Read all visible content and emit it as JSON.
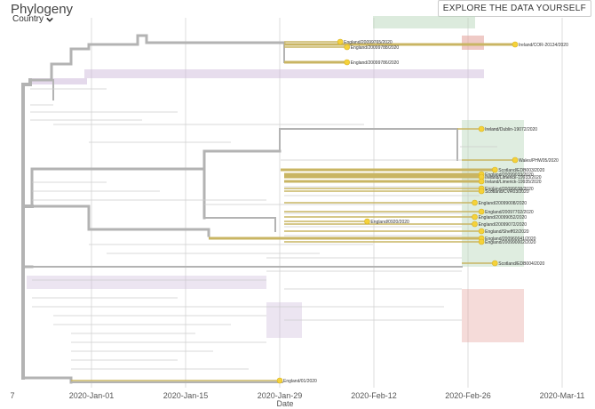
{
  "panel": {
    "title": "Phylogeny",
    "color_by_label": "Country",
    "explore_button": "EXPLORE THE DATA YOURSELF"
  },
  "colors": {
    "branch_gray": "#b3b3b3",
    "grid": "#dddddd",
    "highlight_branch": "#c9b563",
    "highlight_node": "#f5d23a",
    "purple_clade": "#c9b4d8",
    "green_clade": "#b9d8bb",
    "red_clade": "#e5a6a0"
  },
  "chart_data": {
    "type": "phylogeny-timetree",
    "x_axis": {
      "label": "Date",
      "ticks": [
        "2020-Jan-01",
        "2020-Jan-15",
        "2020-Jan-29",
        "2020-Feb-12",
        "2020-Feb-26",
        "2020-Mar-11"
      ],
      "left_edge_label": "7"
    },
    "highlighted_tips": [
      {
        "name": "England/20099765/2020",
        "date": "2020-Feb-07"
      },
      {
        "name": "England/20099788/2020",
        "date": "2020-Feb-08"
      },
      {
        "name": "Ireland/COR-20134/2020",
        "date": "2020-Mar-04"
      },
      {
        "name": "England/20099786/2020",
        "date": "2020-Feb-08"
      },
      {
        "name": "Ireland/Dublin-19072/2020",
        "date": "2020-Feb-28"
      },
      {
        "name": "Wales/PHW05/2020",
        "date": "2020-Mar-04"
      },
      {
        "name": "Scotland/EDB003/2020",
        "date": "2020-Mar-01"
      },
      {
        "name": "England/20099033/2020",
        "date": "2020-Feb-28"
      },
      {
        "name": "Ireland/Limerick-19933/2020",
        "date": "2020-Feb-28"
      },
      {
        "name": "Ireland/Limerick-19935/2020",
        "date": "2020-Feb-28"
      },
      {
        "name": "England/20099038/2020",
        "date": "2020-Feb-28"
      },
      {
        "name": "Scotland/CVR03/2020",
        "date": "2020-Feb-28"
      },
      {
        "name": "England/20099008/2020",
        "date": "2020-Feb-27"
      },
      {
        "name": "England/20097702/2020",
        "date": "2020-Feb-28"
      },
      {
        "name": "England/0920/2020",
        "date": "2020-Feb-11"
      },
      {
        "name": "England/20099052/2020",
        "date": "2020-Feb-27"
      },
      {
        "name": "England/20099072/2020",
        "date": "2020-Feb-27"
      },
      {
        "name": "England/Sheff02/2020",
        "date": "2020-Feb-28"
      },
      {
        "name": "England/200960041/2020",
        "date": "2020-Feb-28"
      },
      {
        "name": "England/200990002/2020",
        "date": "2020-Feb-28"
      },
      {
        "name": "Scotland/EDB004/2020",
        "date": "2020-Mar-01"
      },
      {
        "name": "England/01/2020",
        "date": "2020-Jan-29"
      }
    ]
  }
}
